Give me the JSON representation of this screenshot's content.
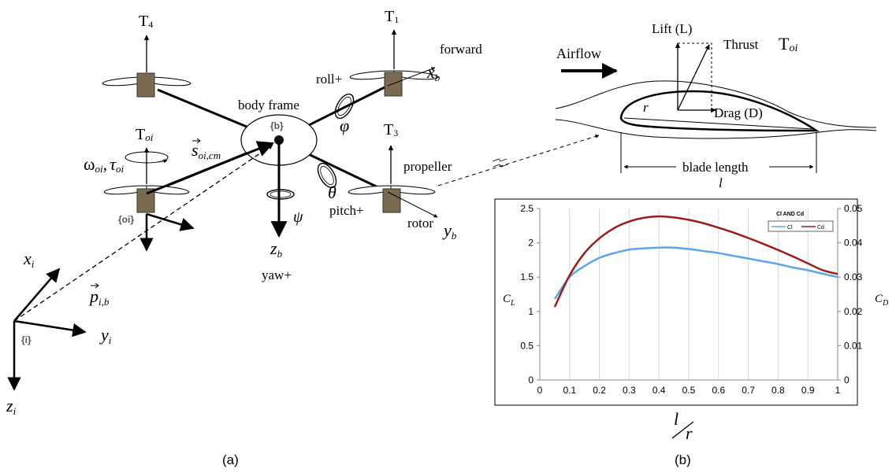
{
  "panel_a": {
    "caption": "(a)",
    "labels": {
      "T4": "T",
      "T4_sub": "4",
      "T1": "T",
      "T1_sub": "1",
      "T3": "T",
      "T3_sub": "3",
      "Toi": "T",
      "Toi_sub": "oi",
      "forward": "forward",
      "xb": "x",
      "xb_sub": "b",
      "roll": "roll+",
      "phi": "φ",
      "body_frame": "body frame",
      "b_frame": "{b}",
      "omega": "ω",
      "omega_sub": "oi",
      "comma": ",",
      "tau": "τ",
      "tau_sub": "oi",
      "s": "s",
      "s_sub": "oi,cm",
      "propeller": "propeller",
      "theta": "θ",
      "pitch": "pitch+",
      "oi_frame": "{oi}",
      "psi": "ψ",
      "rotor": "rotor",
      "yb": "y",
      "yb_sub": "b",
      "zb": "z",
      "zb_sub": "b",
      "yaw": "yaw+",
      "xi": "x",
      "xi_sub": "i",
      "p": "p",
      "p_sub": "i,b",
      "i_frame": "{i}",
      "yi": "y",
      "yi_sub": "i",
      "zi": "z",
      "zi_sub": "i"
    }
  },
  "panel_b": {
    "caption": "(b)",
    "airfoil": {
      "lift": "Lift (L)",
      "thrust": "Thrust",
      "thrust_T": "T",
      "thrust_sub": "oi",
      "airflow": "Airflow",
      "r": "r",
      "drag": "Drag (D)",
      "blade_length": "blade length",
      "l": "l"
    },
    "chart_data": {
      "type": "line",
      "title": "Cl AND Cd",
      "xlabel_num": "l",
      "xlabel_den": "r",
      "ylabel_left": "C",
      "ylabel_left_sub": "L",
      "ylabel_right": "C",
      "ylabel_right_sub": "D",
      "xlim": [
        0,
        1
      ],
      "ylim_left": [
        0,
        2.5
      ],
      "ylim_right": [
        0,
        0.05
      ],
      "x_ticks": [
        "0",
        "0.1",
        "0.2",
        "0.3",
        "0.4",
        "0.5",
        "0.6",
        "0.7",
        "0.8",
        "0.9",
        "1"
      ],
      "y_ticks_left": [
        "0",
        "0.5",
        "1",
        "1.5",
        "2",
        "2.5"
      ],
      "y_ticks_right": [
        "0",
        "0.01",
        "0.02",
        "0.03",
        "0.04",
        "0.05"
      ],
      "grid": "vertical",
      "legend_position": "top-right",
      "series": [
        {
          "name": "Cl",
          "color": "#5aa6ec",
          "axis": "left",
          "x": [
            0.05,
            0.1,
            0.15,
            0.2,
            0.25,
            0.3,
            0.35,
            0.4,
            0.45,
            0.5,
            0.55,
            0.6,
            0.65,
            0.7,
            0.75,
            0.8,
            0.85,
            0.9,
            0.95,
            1.0
          ],
          "y": [
            1.18,
            1.5,
            1.66,
            1.78,
            1.85,
            1.9,
            1.92,
            1.93,
            1.93,
            1.91,
            1.88,
            1.85,
            1.81,
            1.77,
            1.73,
            1.69,
            1.64,
            1.6,
            1.55,
            1.5
          ]
        },
        {
          "name": "Cd",
          "color": "#9b1c1c",
          "axis": "right",
          "x": [
            0.05,
            0.1,
            0.15,
            0.2,
            0.25,
            0.3,
            0.35,
            0.4,
            0.45,
            0.5,
            0.55,
            0.6,
            0.65,
            0.7,
            0.75,
            0.8,
            0.85,
            0.9,
            0.95,
            1.0
          ],
          "y": [
            0.0213,
            0.0305,
            0.037,
            0.0413,
            0.0443,
            0.0462,
            0.0473,
            0.0477,
            0.0474,
            0.0467,
            0.0457,
            0.0444,
            0.043,
            0.0414,
            0.0397,
            0.0379,
            0.036,
            0.034,
            0.032,
            0.0309
          ]
        }
      ]
    }
  }
}
